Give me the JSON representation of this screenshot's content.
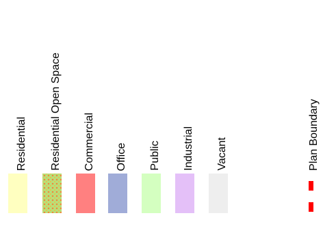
{
  "legend": {
    "items": [
      {
        "label": "Residential",
        "color": "#ffffc0"
      },
      {
        "label": "Residential Open Space",
        "color": "#b8e07a",
        "pattern": "dotted"
      },
      {
        "label": "Commercial",
        "color": "#ff8080"
      },
      {
        "label": "Office",
        "color": "#a0acd8"
      },
      {
        "label": "Public",
        "color": "#d4ffc0"
      },
      {
        "label": "Industrial",
        "color": "#e4c0f8"
      },
      {
        "label": "Vacant",
        "color": "#eeeeee"
      }
    ],
    "boundary": {
      "label": "Plan Boundary",
      "color": "#ff0000",
      "style": "dashed"
    }
  }
}
